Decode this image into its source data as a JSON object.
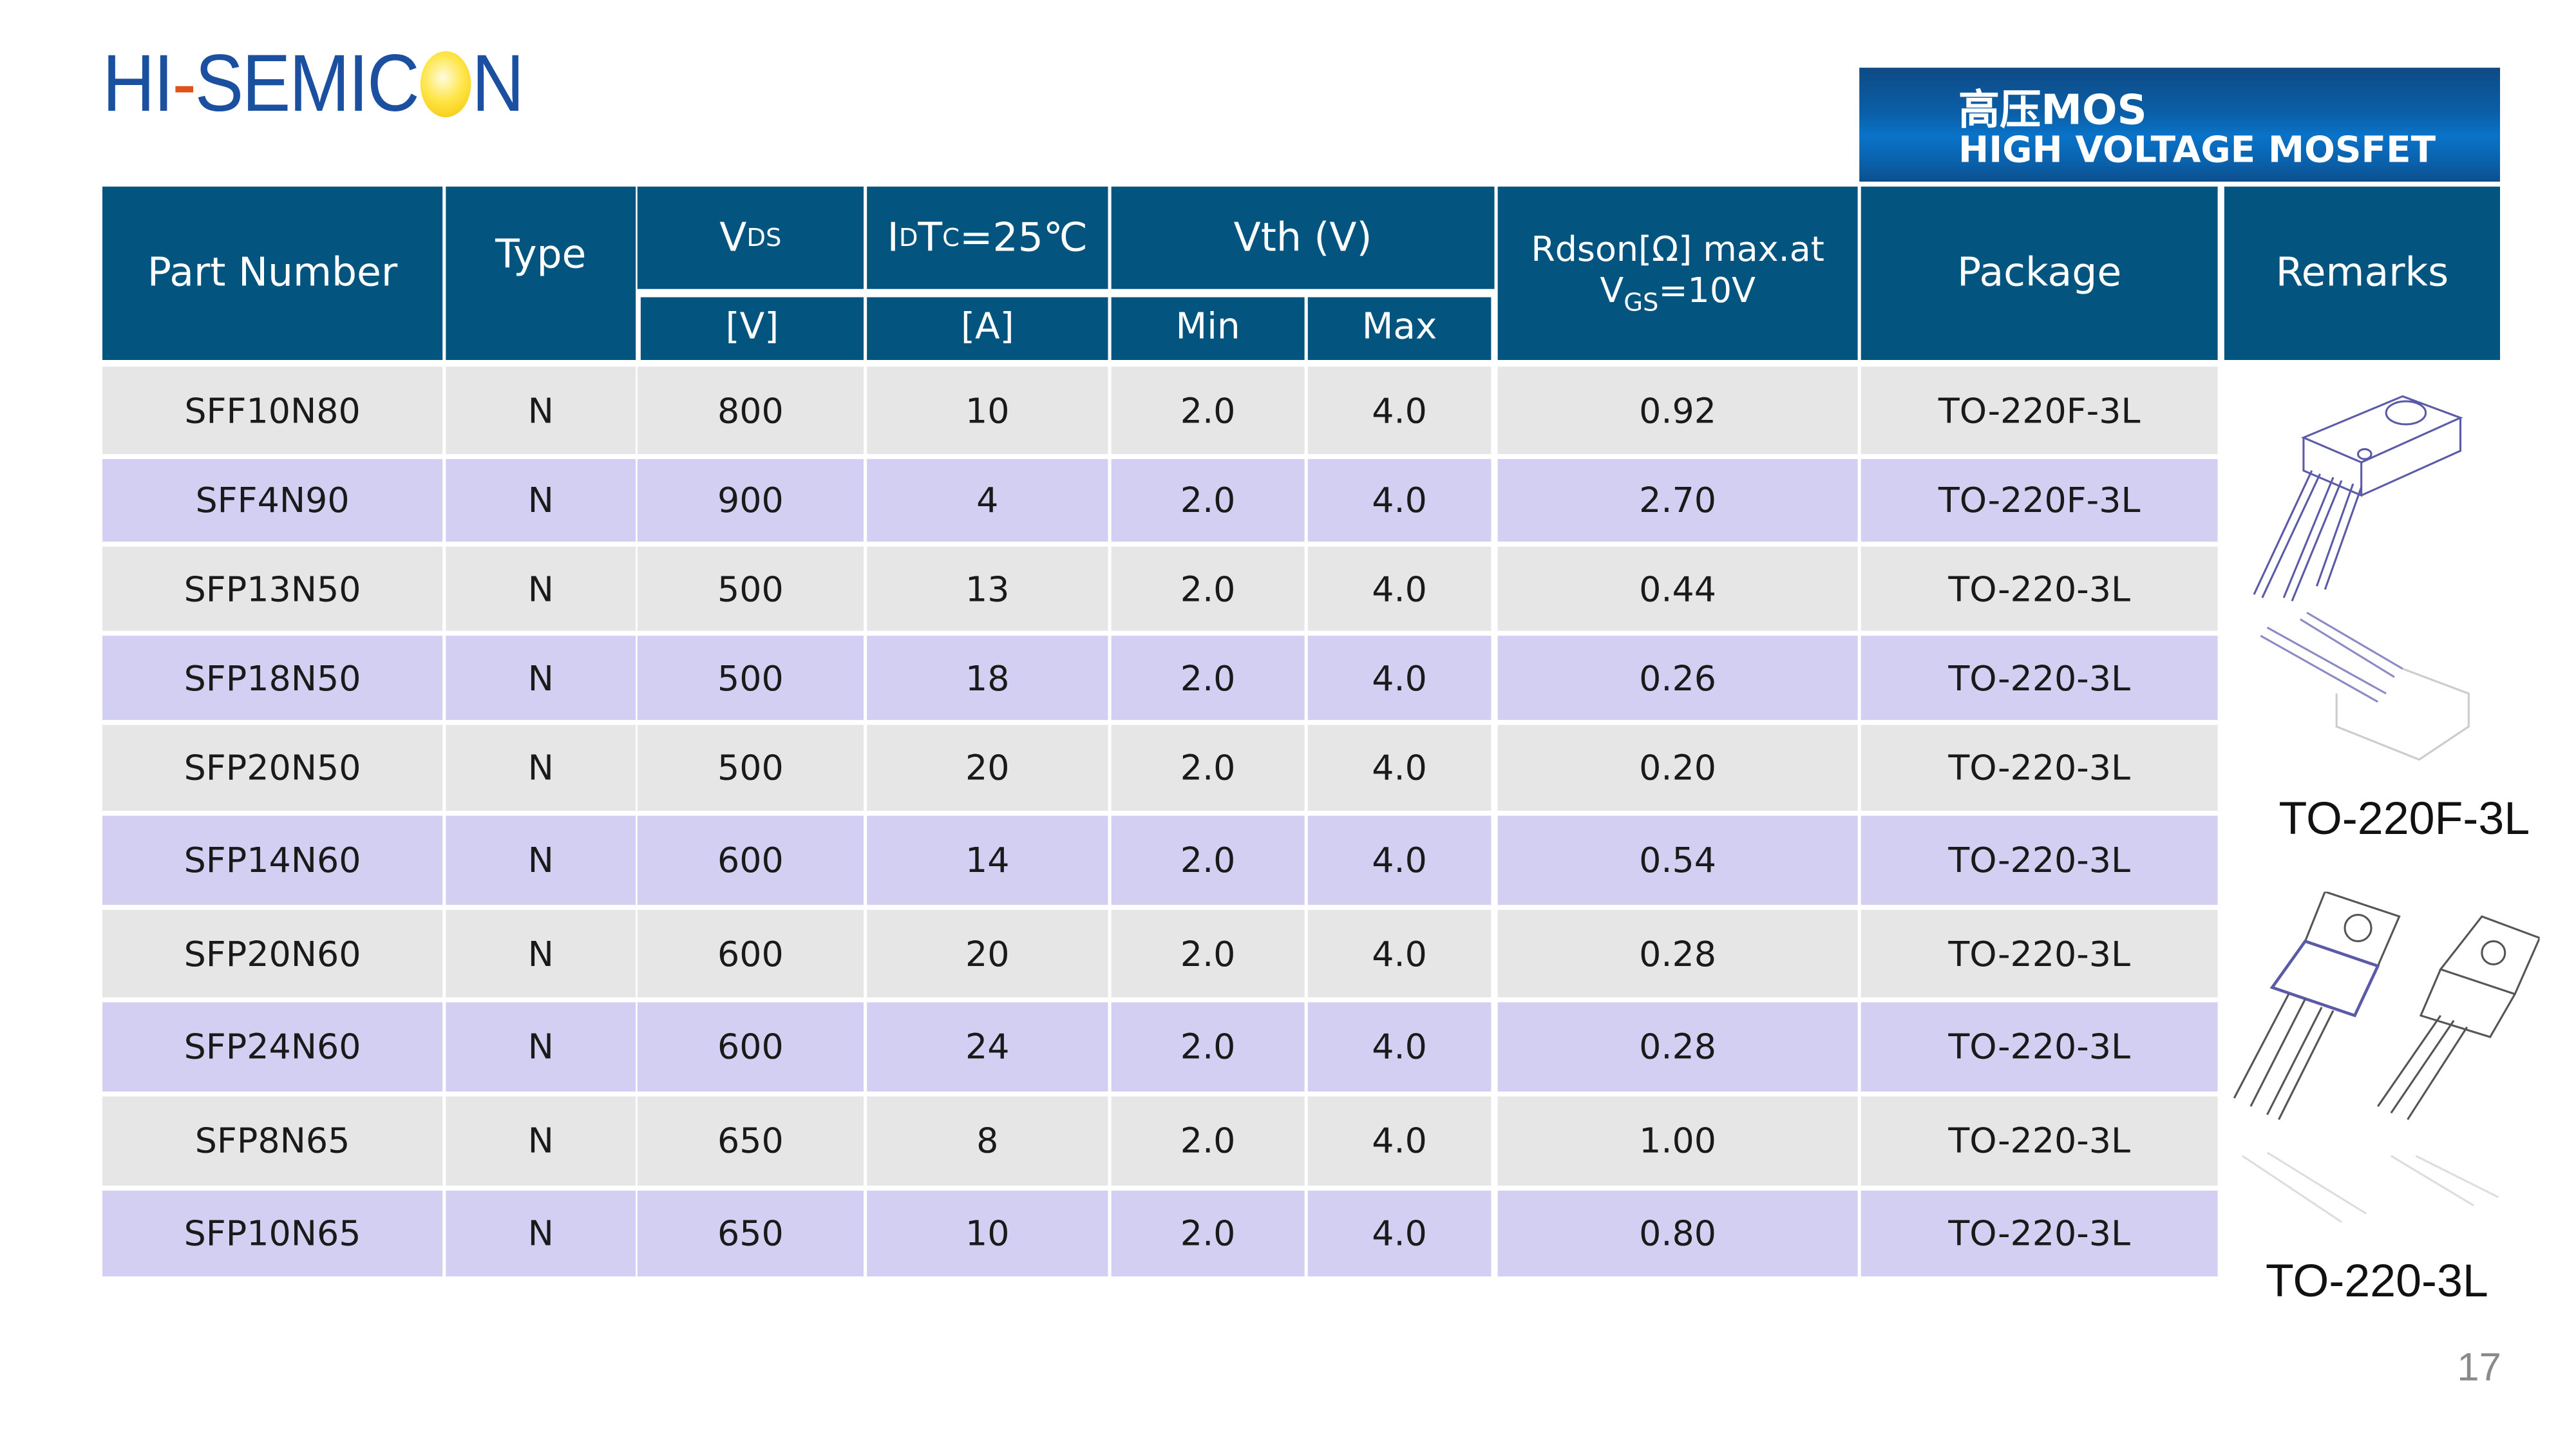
{
  "logo": {
    "text_left": "HI",
    "text_mid": "SEMIC",
    "text_right": "N",
    "full": "HI-SEMICON"
  },
  "title": {
    "line1": "高压MOS",
    "line2": "HIGH VOLTAGE MOSFET"
  },
  "colors": {
    "header": "#03557f",
    "row_odd": "#e6e6e6",
    "row_even": "#d2cff3",
    "accent": "#1b4fa0"
  },
  "table": {
    "headers": {
      "part_number": "Part Number",
      "type": "Type",
      "vds": "V",
      "vds_sub": "DS",
      "vds_unit": "[V]",
      "id": "I",
      "id_sub": "D",
      "id_tc": " T",
      "id_tc_sub": "C",
      "id_tc_val": "=25℃",
      "id_unit": "[A]",
      "vth": "Vth (V)",
      "vth_min": "Min",
      "vth_max": "Max",
      "rdson_line1": "Rdson[Ω] max.at",
      "rdson_v": "V",
      "rdson_sub": "GS",
      "rdson_val": "=10V",
      "package": "Package",
      "remarks": "Remarks"
    },
    "rows": [
      [
        "SFF10N80",
        "N",
        "800",
        "10",
        "2.0",
        "4.0",
        "0.92",
        "TO-220F-3L"
      ],
      [
        "SFF4N90",
        "N",
        "900",
        "4",
        "2.0",
        "4.0",
        "2.70",
        "TO-220F-3L"
      ],
      [
        "SFP13N50",
        "N",
        "500",
        "13",
        "2.0",
        "4.0",
        "0.44",
        "TO-220-3L"
      ],
      [
        "SFP18N50",
        "N",
        "500",
        "18",
        "2.0",
        "4.0",
        "0.26",
        "TO-220-3L"
      ],
      [
        "SFP20N50",
        "N",
        "500",
        "20",
        "2.0",
        "4.0",
        "0.20",
        "TO-220-3L"
      ],
      [
        "SFP14N60",
        "N",
        "600",
        "14",
        "2.0",
        "4.0",
        "0.54",
        "TO-220-3L"
      ],
      [
        "SFP20N60",
        "N",
        "600",
        "20",
        "2.0",
        "4.0",
        "0.28",
        "TO-220-3L"
      ],
      [
        "SFP24N60",
        "N",
        "600",
        "24",
        "2.0",
        "4.0",
        "0.28",
        "TO-220-3L"
      ],
      [
        "SFP8N65",
        "N",
        "650",
        "8",
        "2.0",
        "4.0",
        "1.00",
        "TO-220-3L"
      ],
      [
        "SFP10N65",
        "N",
        "650",
        "10",
        "2.0",
        "4.0",
        "0.80",
        "TO-220-3L"
      ]
    ]
  },
  "remarks": {
    "package1": "TO-220F-3L",
    "package2": "TO-220-3L"
  },
  "page_number": "17"
}
